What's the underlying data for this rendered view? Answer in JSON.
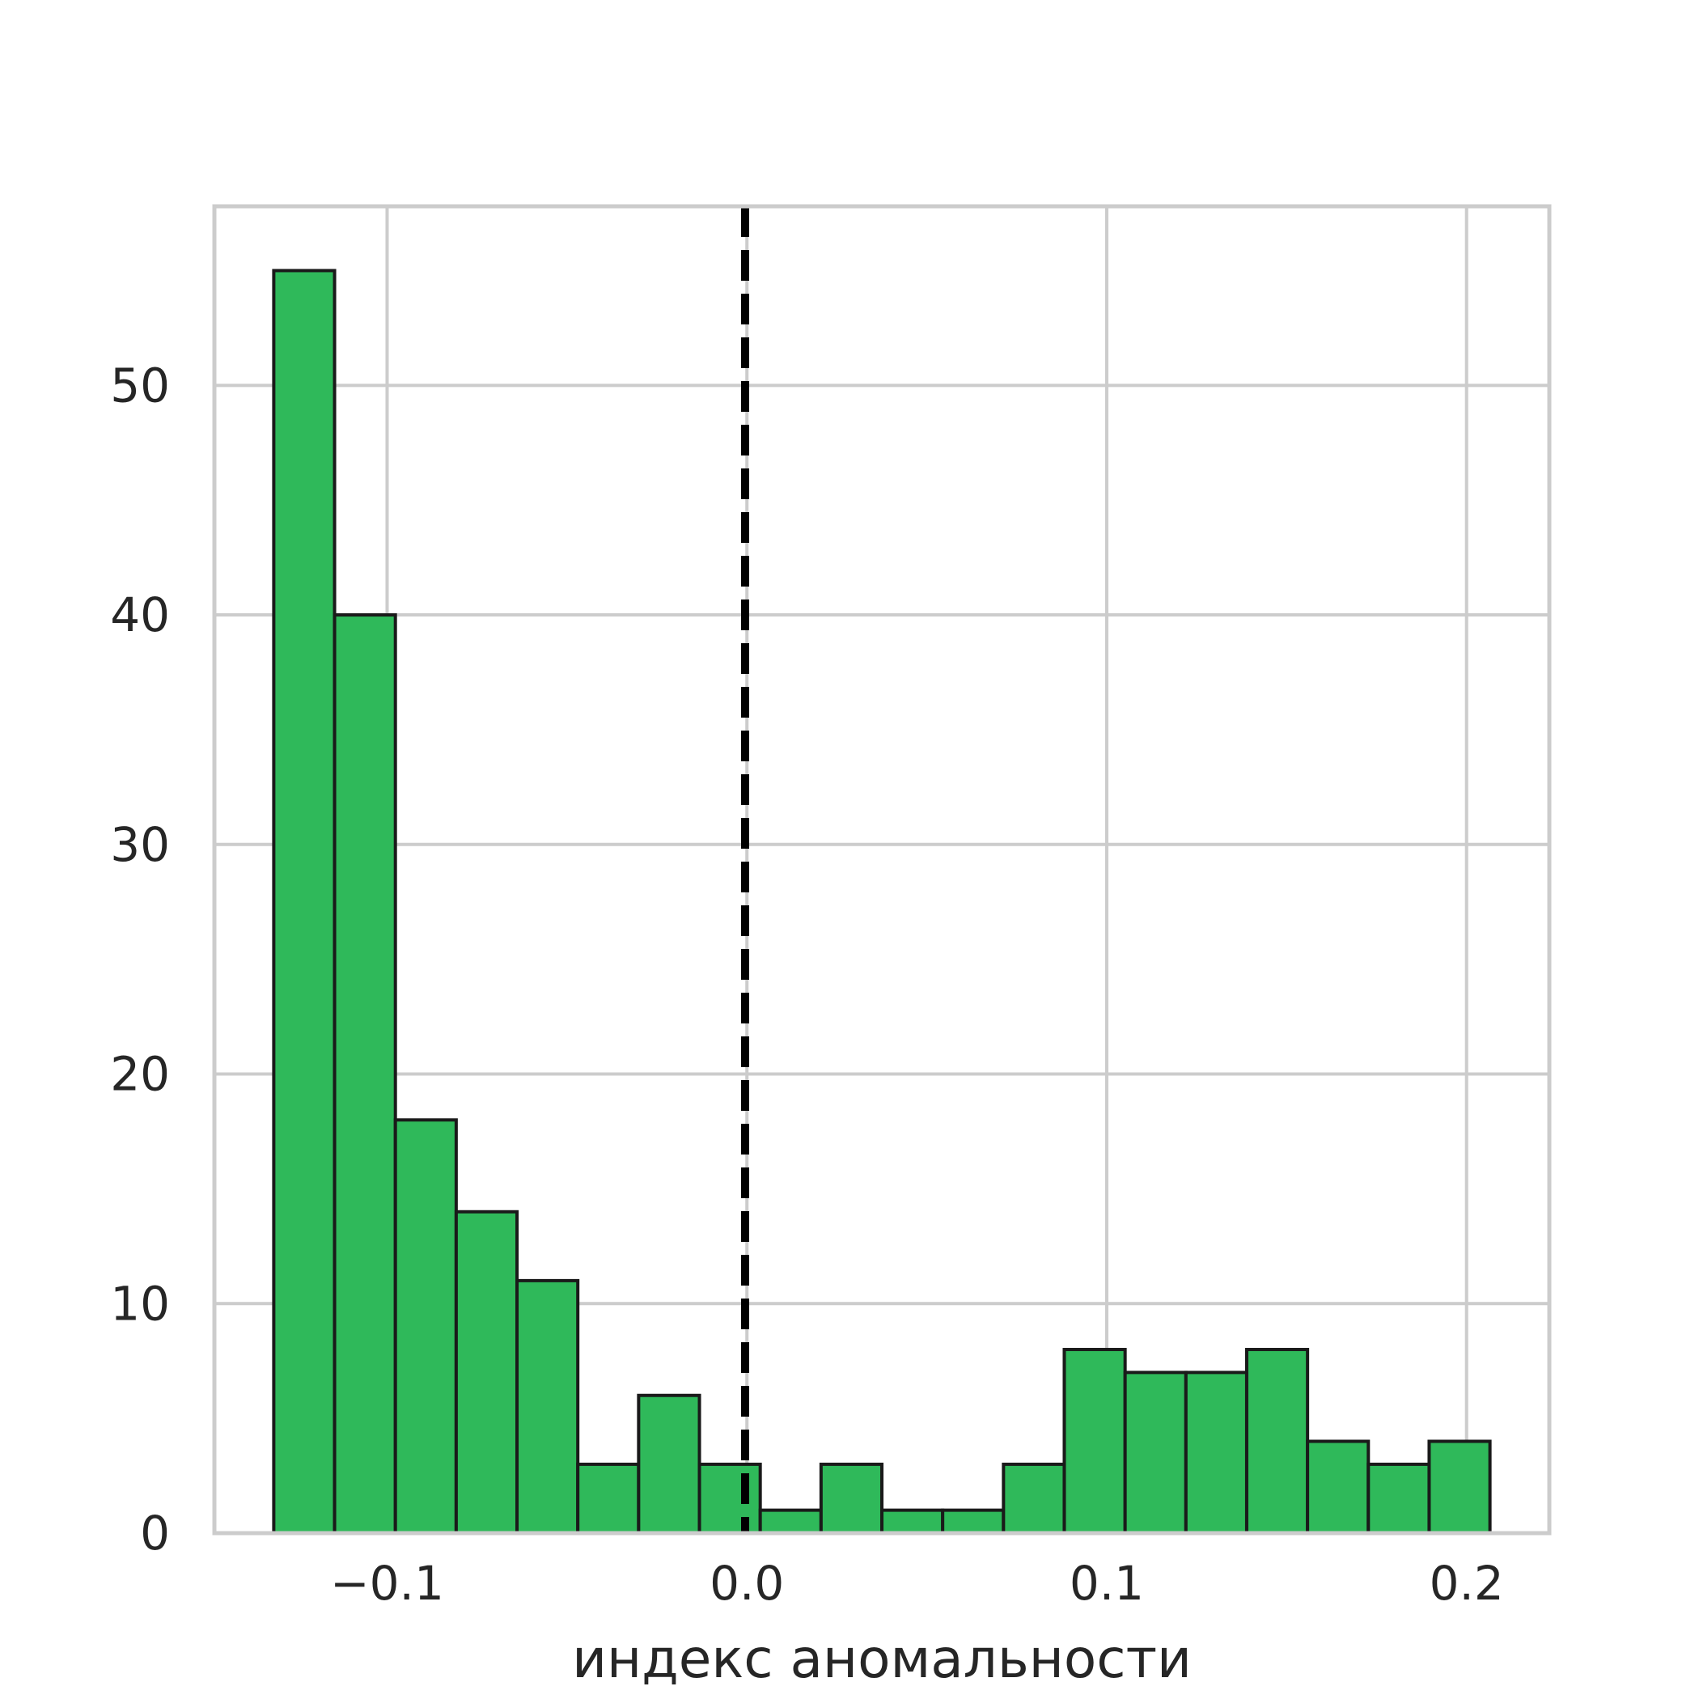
{
  "chart_data": {
    "type": "bar",
    "subtype": "histogram",
    "title": "",
    "xlabel": "индекс аномальности",
    "ylabel": "",
    "xlim": [
      -0.148,
      0.223
    ],
    "ylim": [
      0,
      57.8
    ],
    "x_ticks": [
      {
        "value": -0.1,
        "label": "−0.1"
      },
      {
        "value": 0.0,
        "label": "0.0"
      },
      {
        "value": 0.1,
        "label": "0.1"
      },
      {
        "value": 0.2,
        "label": "0.2"
      }
    ],
    "y_ticks": [
      {
        "value": 0,
        "label": "0"
      },
      {
        "value": 10,
        "label": "10"
      },
      {
        "value": 20,
        "label": "20"
      },
      {
        "value": 30,
        "label": "30"
      },
      {
        "value": 40,
        "label": "40"
      },
      {
        "value": 50,
        "label": "50"
      }
    ],
    "bin_edges": [
      -0.1315,
      -0.1146,
      -0.0977,
      -0.0808,
      -0.0639,
      -0.047,
      -0.0301,
      -0.0132,
      0.0037,
      0.0206,
      0.0375,
      0.0544,
      0.0713,
      0.0882,
      0.1051,
      0.122,
      0.1389,
      0.1558,
      0.1727,
      0.1896,
      0.2065
    ],
    "values": [
      55,
      40,
      18,
      14,
      11,
      3,
      6,
      3,
      1,
      3,
      1,
      1,
      3,
      8,
      7,
      7,
      8,
      4,
      3,
      4
    ],
    "threshold": -0.0005,
    "grid": true,
    "colors": {
      "bar_fill": "#2fb95a",
      "bar_edge": "#1a1a1a",
      "grid": "#cccccc",
      "threshold": "#000000",
      "text": "#262626"
    }
  }
}
